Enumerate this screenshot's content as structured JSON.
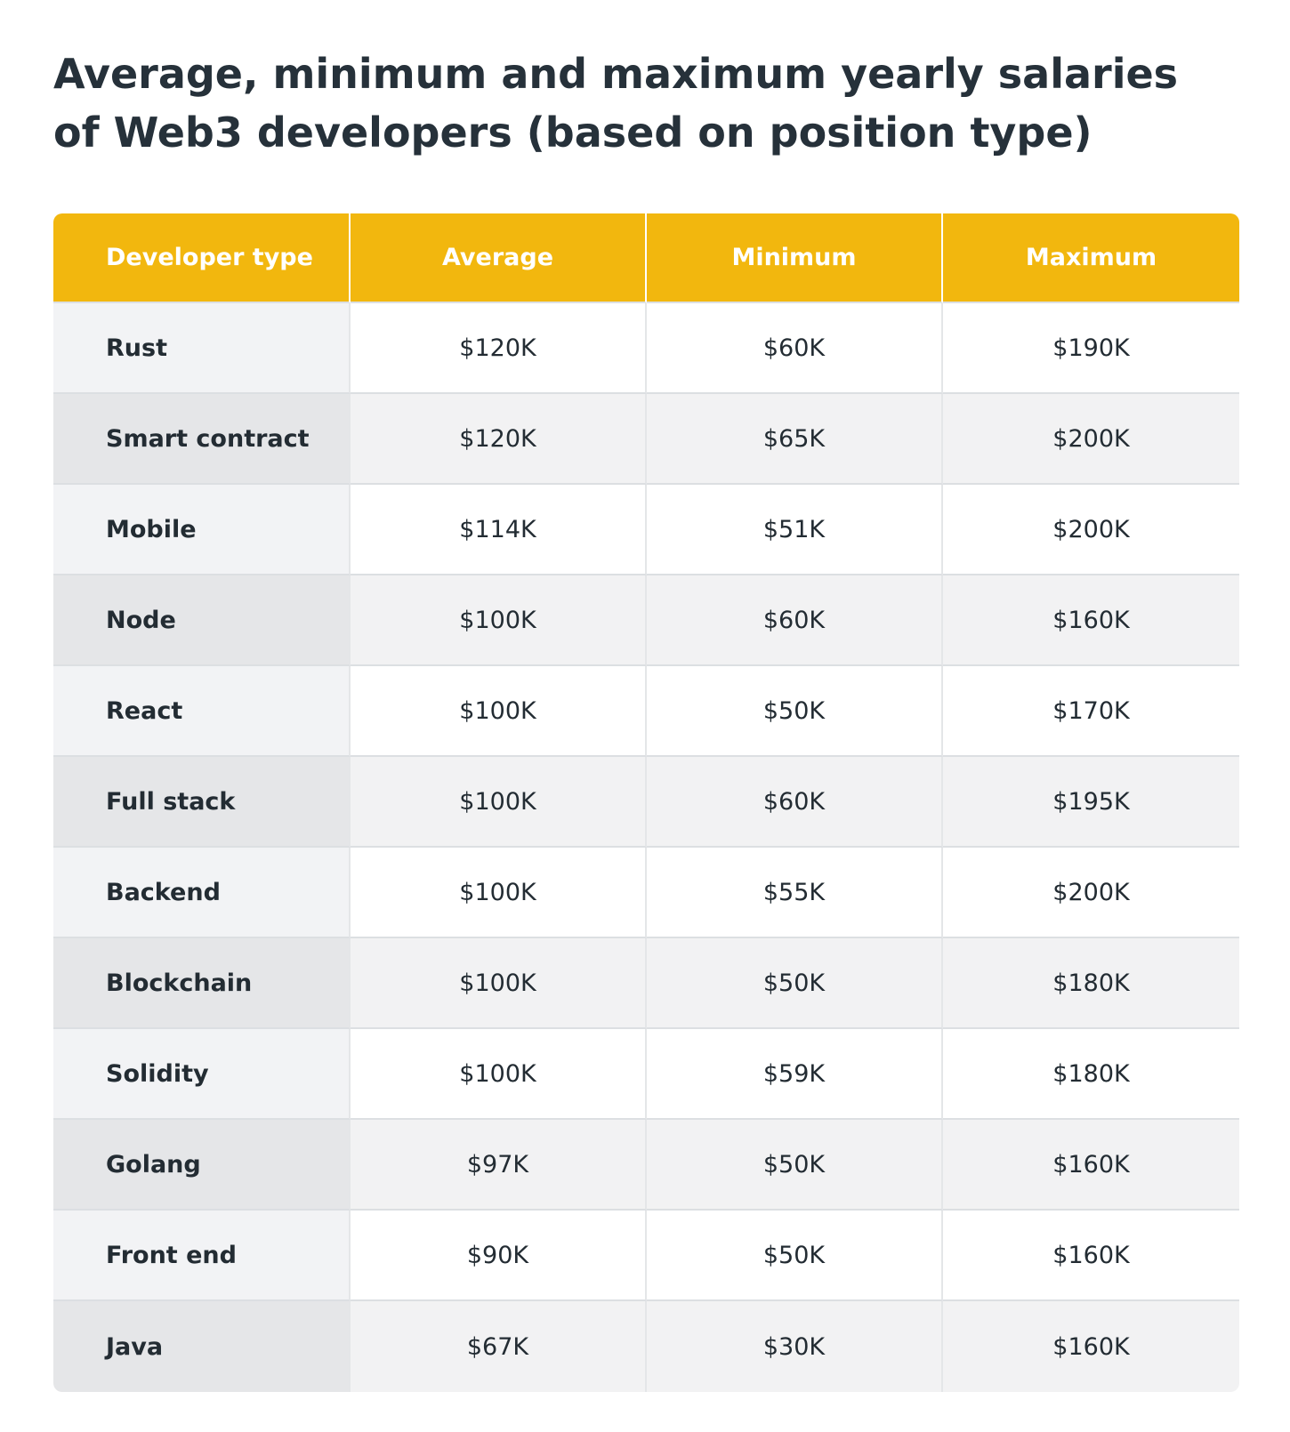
{
  "title": {
    "line1": "Average, minimum and maximum yearly salaries",
    "line2": "of Web3 developers (based on position type)"
  },
  "colors": {
    "header_bg": "#f2b70e",
    "header_text": "#ffffff",
    "row_odd_label_bg": "#f2f3f5",
    "row_even_label_bg": "#e5e6e8",
    "text": "#232c33"
  },
  "chart_data": {
    "type": "table",
    "title": "Average, minimum and maximum yearly salaries of Web3 developers (based on position type)",
    "columns": [
      "Developer type",
      "Average",
      "Minimum",
      "Maximum"
    ],
    "rows": [
      [
        "Rust",
        "$120K",
        "$60K",
        "$190K"
      ],
      [
        "Smart contract",
        "$120K",
        "$65K",
        "$200K"
      ],
      [
        "Mobile",
        "$114K",
        "$51K",
        "$200K"
      ],
      [
        "Node",
        "$100K",
        "$60K",
        "$160K"
      ],
      [
        "React",
        "$100K",
        "$50K",
        "$170K"
      ],
      [
        "Full stack",
        "$100K",
        "$60K",
        "$195K"
      ],
      [
        "Backend",
        "$100K",
        "$55K",
        "$200K"
      ],
      [
        "Blockchain",
        "$100K",
        "$50K",
        "$180K"
      ],
      [
        "Solidity",
        "$100K",
        "$59K",
        "$180K"
      ],
      [
        "Golang",
        "$97K",
        "$50K",
        "$160K"
      ],
      [
        "Front end",
        "$90K",
        "$50K",
        "$160K"
      ],
      [
        "Java",
        "$67K",
        "$30K",
        "$160K"
      ]
    ]
  }
}
